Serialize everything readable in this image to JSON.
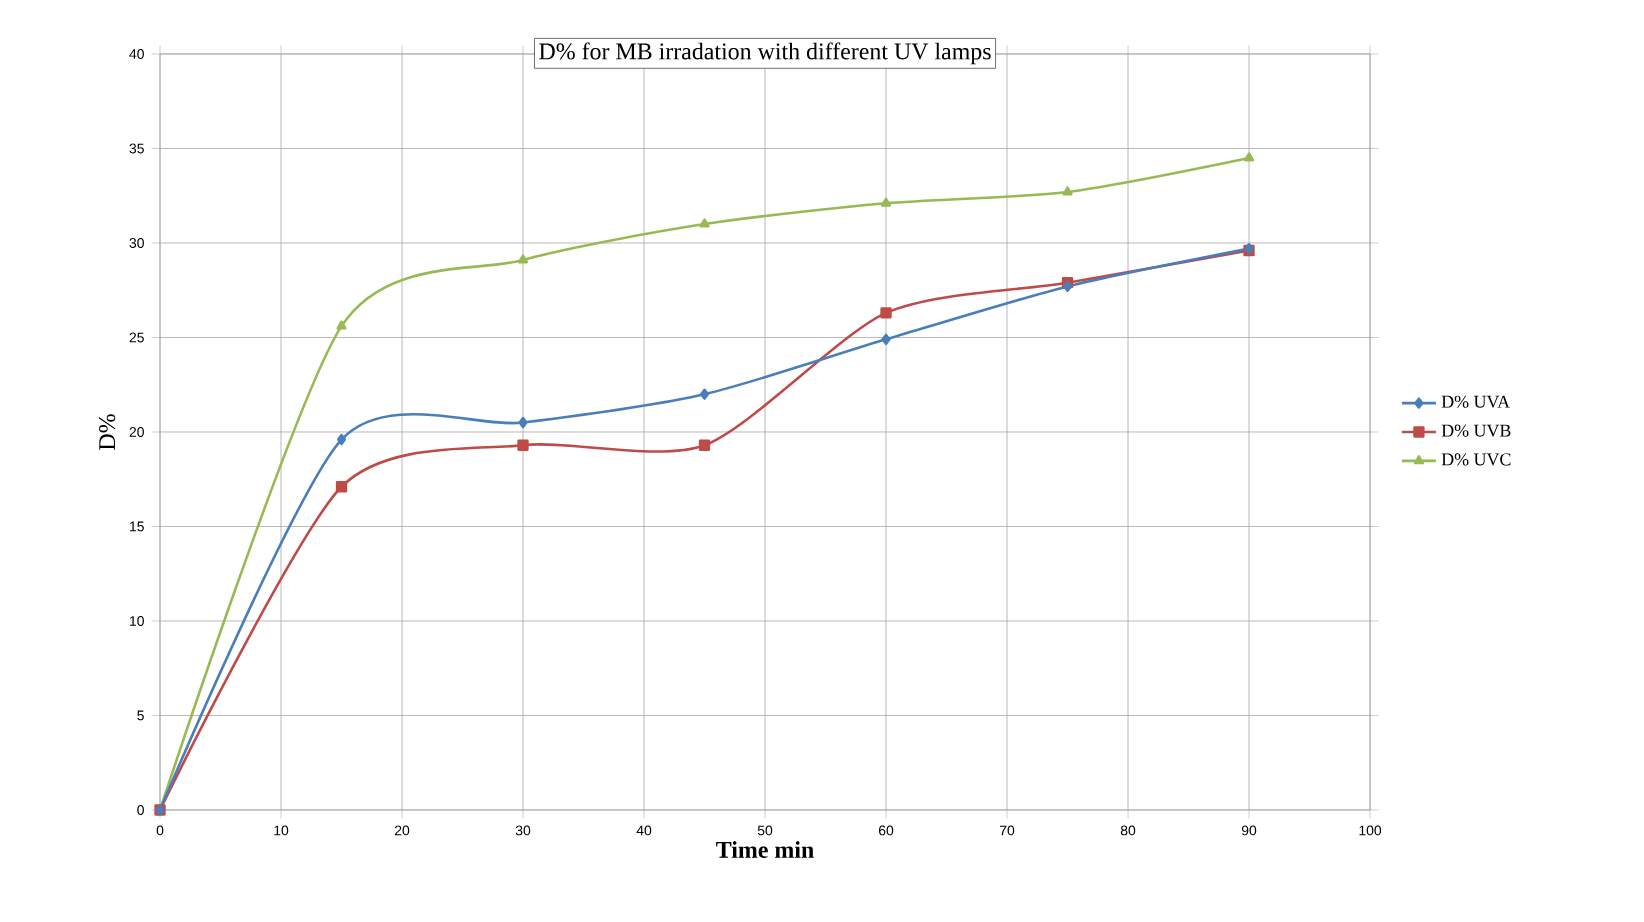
{
  "chart_data": {
    "type": "line",
    "title": "D% for MB irradation with different UV lamps",
    "xlabel": "Time min",
    "ylabel": "D%",
    "x": [
      0,
      15,
      30,
      45,
      60,
      75,
      90
    ],
    "series": [
      {
        "name": "D% UVA",
        "color": "#4a7ebb",
        "marker": "diamond",
        "values": [
          0,
          19.6,
          20.5,
          22,
          24.9,
          27.7,
          29.7
        ]
      },
      {
        "name": "D% UVB",
        "color": "#be4b48",
        "marker": "square",
        "values": [
          0,
          17.1,
          19.3,
          19.3,
          26.3,
          27.9,
          29.6
        ]
      },
      {
        "name": "D% UVC",
        "color": "#98b954",
        "marker": "triangle",
        "values": [
          0,
          25.6,
          29.1,
          31,
          32.1,
          32.7,
          34.5
        ]
      }
    ],
    "xlim": [
      0,
      100
    ],
    "xticks": [
      0,
      10,
      20,
      30,
      40,
      50,
      60,
      70,
      80,
      90,
      100
    ],
    "ylim": [
      0,
      40
    ],
    "yticks": [
      0,
      5,
      10,
      15,
      20,
      25,
      30,
      35,
      40
    ],
    "grid": true,
    "legend": "right",
    "line_style": "solid"
  }
}
